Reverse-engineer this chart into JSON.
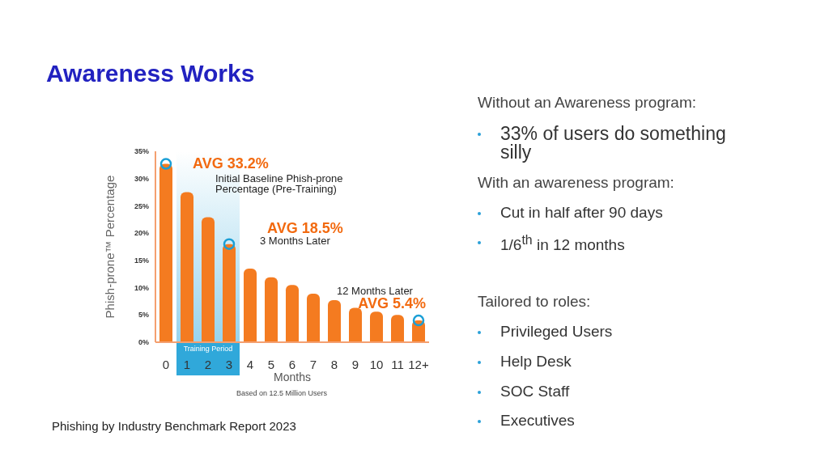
{
  "chart_data": {
    "type": "bar",
    "title": "Awareness Works",
    "xlabel": "Months",
    "ylabel": "Phish-prone™ Percentage",
    "categories": [
      "0",
      "1",
      "2",
      "3",
      "4",
      "5",
      "6",
      "7",
      "8",
      "9",
      "10",
      "11",
      "12+"
    ],
    "values": [
      32.7,
      27.5,
      22.9,
      18.0,
      13.5,
      11.9,
      10.5,
      8.9,
      7.7,
      6.3,
      5.6,
      5.0,
      4.0
    ],
    "color": "#f47b20",
    "ylim": [
      0,
      35
    ],
    "yticks": [
      {
        "value": 0,
        "label": "0%"
      },
      {
        "value": 5,
        "label": "5%"
      },
      {
        "value": 10,
        "label": "10%"
      },
      {
        "value": 15,
        "label": "15%"
      },
      {
        "value": 20,
        "label": "20%"
      },
      {
        "value": 25,
        "label": "25%"
      },
      {
        "value": 30,
        "label": "30%"
      },
      {
        "value": 35,
        "label": "35%"
      }
    ],
    "grid": false,
    "bands": [
      {
        "axis": "x",
        "from": "1",
        "to": "3",
        "label": "Training Period",
        "color": "#1a9fd6"
      }
    ],
    "annotations": [
      {
        "text": "AVG 33.2%",
        "x": "0",
        "y": 32.7
      },
      {
        "text": "AVG 18.5%",
        "x": "3",
        "y": 18.0
      },
      {
        "text": "AVG 5.4%",
        "x": "12+",
        "y": 4.0
      },
      "Initial Baseline Phish-prone Percentage (Pre-Training)",
      "3 Months Later",
      "12 Months Later",
      "Based on 12.5 Million Users",
      "Phishing by Industry Benchmark Report 2023",
      "Without an Awareness program:",
      "33% of users do something silly",
      "With an awareness program:",
      "Cut in half after 90 days",
      "1/6$^{th}$ in 12 months",
      "Tailored to roles:",
      "Privileged Users",
      "Help Desk",
      "SOC Staff",
      "Executives"
    ]
  }
}
